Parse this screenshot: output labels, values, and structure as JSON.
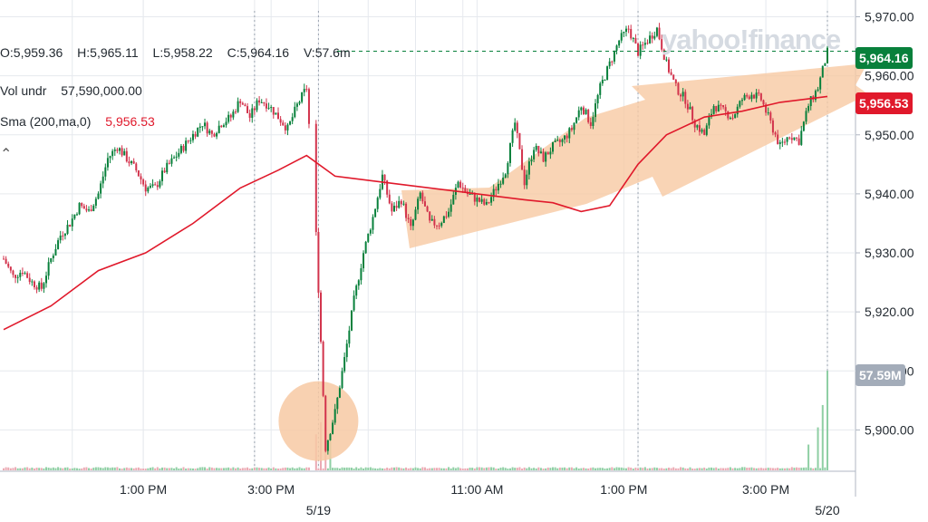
{
  "header": {
    "ohlcv": {
      "open": "O:5,959.36",
      "high": "H:5,965.11",
      "low": "L:5,958.22",
      "close": "C:5,964.16",
      "volume": "V:57.6m"
    },
    "vol_label": "Vol undr",
    "vol_value": "57,590,000.00",
    "ma_label": "Sma (200,ma,0)",
    "ma_value": "5,956.53",
    "collapse_icon": "chevron-up-icon"
  },
  "watermark": "yahoo!finance",
  "badges": {
    "last": "5,964.16",
    "ma": "5,956.53",
    "volume": "57.59M"
  },
  "colors": {
    "up": "#08803b",
    "down": "#d2334c",
    "ma_line": "#e0192b",
    "annotation": "#f7c9a3",
    "last_price_badge": "#08803b",
    "ma_badge": "#e0192b",
    "volume_badge": "#a3acb9"
  },
  "chart_data": {
    "type": "candlestick",
    "x_ticks": [
      "1:00 PM",
      "3:00 PM",
      "5/19",
      "11:00 AM",
      "1:00 PM",
      "3:00 PM",
      "5/20"
    ],
    "y_ticks": [
      "5,970.00",
      "5,960.00",
      "5,950.00",
      "5,940.00",
      "5,930.00",
      "5,920.00",
      "5,910.00",
      "5,900.00"
    ],
    "ylim": [
      5893,
      5971
    ],
    "grid": true,
    "last_price": 5964.16,
    "ma_value": 5956.53,
    "price_path": [
      [
        0,
        5929
      ],
      [
        4,
        5926
      ],
      [
        8,
        5927
      ],
      [
        12,
        5925
      ],
      [
        16,
        5924
      ],
      [
        20,
        5929
      ],
      [
        24,
        5933
      ],
      [
        28,
        5935
      ],
      [
        32,
        5938
      ],
      [
        36,
        5937
      ],
      [
        40,
        5940
      ],
      [
        44,
        5946
      ],
      [
        48,
        5948
      ],
      [
        52,
        5946
      ],
      [
        56,
        5944
      ],
      [
        60,
        5941
      ],
      [
        64,
        5941
      ],
      [
        68,
        5944
      ],
      [
        72,
        5946
      ],
      [
        76,
        5948
      ],
      [
        80,
        5950
      ],
      [
        84,
        5952
      ],
      [
        88,
        5950
      ],
      [
        92,
        5952
      ],
      [
        96,
        5953
      ],
      [
        100,
        5956
      ],
      [
        104,
        5953
      ],
      [
        108,
        5956
      ],
      [
        112,
        5955
      ],
      [
        116,
        5953
      ],
      [
        120,
        5951
      ],
      [
        124,
        5955
      ],
      [
        128,
        5958
      ],
      [
        132,
        5933
      ],
      [
        136,
        5897
      ],
      [
        140,
        5903
      ],
      [
        144,
        5912
      ],
      [
        148,
        5922
      ],
      [
        152,
        5930
      ],
      [
        156,
        5936
      ],
      [
        160,
        5943
      ],
      [
        164,
        5937
      ],
      [
        168,
        5939
      ],
      [
        172,
        5934
      ],
      [
        176,
        5940
      ],
      [
        180,
        5935
      ],
      [
        184,
        5935
      ],
      [
        188,
        5937
      ],
      [
        192,
        5942
      ],
      [
        196,
        5940
      ],
      [
        200,
        5939
      ],
      [
        204,
        5938
      ],
      [
        208,
        5941
      ],
      [
        212,
        5944
      ],
      [
        216,
        5952
      ],
      [
        220,
        5942
      ],
      [
        224,
        5948
      ],
      [
        228,
        5946
      ],
      [
        232,
        5948
      ],
      [
        236,
        5949
      ],
      [
        240,
        5951
      ],
      [
        244,
        5955
      ],
      [
        248,
        5952
      ],
      [
        252,
        5958
      ],
      [
        256,
        5962
      ],
      [
        260,
        5966
      ],
      [
        264,
        5968
      ],
      [
        268,
        5964
      ],
      [
        272,
        5966
      ],
      [
        276,
        5968
      ],
      [
        280,
        5962
      ],
      [
        284,
        5958
      ],
      [
        288,
        5956
      ],
      [
        292,
        5952
      ],
      [
        296,
        5950
      ],
      [
        300,
        5955
      ],
      [
        304,
        5954
      ],
      [
        308,
        5953
      ],
      [
        312,
        5956
      ],
      [
        316,
        5957
      ],
      [
        320,
        5956
      ],
      [
        324,
        5952
      ],
      [
        328,
        5948
      ],
      [
        332,
        5950
      ],
      [
        336,
        5949
      ],
      [
        340,
        5955
      ],
      [
        344,
        5958
      ],
      [
        348,
        5964
      ]
    ],
    "ma_path": [
      [
        0,
        5917
      ],
      [
        20,
        5921
      ],
      [
        40,
        5927
      ],
      [
        60,
        5930
      ],
      [
        80,
        5935
      ],
      [
        100,
        5941
      ],
      [
        116,
        5944
      ],
      [
        128,
        5946.5
      ],
      [
        140,
        5943
      ],
      [
        160,
        5942
      ],
      [
        180,
        5941
      ],
      [
        200,
        5940
      ],
      [
        220,
        5939
      ],
      [
        232,
        5938.5
      ],
      [
        244,
        5937
      ],
      [
        256,
        5938
      ],
      [
        268,
        5945
      ],
      [
        280,
        5950
      ],
      [
        296,
        5953
      ],
      [
        312,
        5954
      ],
      [
        328,
        5955.5
      ],
      [
        348,
        5956.5
      ]
    ],
    "volume": {
      "regular": [
        100,
        190
      ],
      "spikes": [
        {
          "t": 132,
          "v": 2100
        },
        {
          "t": 134,
          "v": 2800
        },
        {
          "t": 136,
          "v": 2500
        },
        {
          "t": 138,
          "v": 1700
        },
        {
          "t": 340,
          "v": 1500
        },
        {
          "t": 344,
          "v": 2500
        },
        {
          "t": 346,
          "v": 3800
        },
        {
          "t": 348,
          "v": 5800
        }
      ]
    }
  }
}
